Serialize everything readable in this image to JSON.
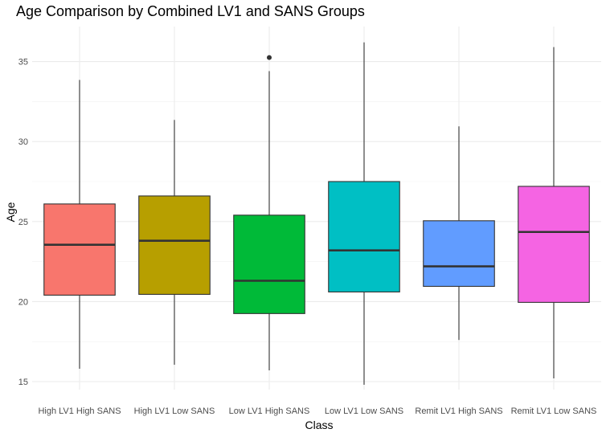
{
  "chart_data": {
    "type": "boxplot",
    "title": "Age Comparison by Combined LV1 and SANS Groups",
    "xlabel": "Class",
    "ylabel": "Age",
    "ylim": [
      14.8,
      36.6
    ],
    "yticks": [
      15,
      20,
      25,
      30,
      35
    ],
    "grid": true,
    "legend": "none",
    "categories": [
      "High LV1 High SANS",
      "High LV1 Low SANS",
      "Low LV1 High SANS",
      "Low LV1 Low SANS",
      "Remit LV1 High SANS",
      "Remit LV1 Low SANS"
    ],
    "boxes": [
      {
        "category": "High LV1 High SANS",
        "min": 15.8,
        "q1": 20.4,
        "median": 23.55,
        "q3": 26.1,
        "max": 33.85,
        "outliers": [],
        "color": "#F8766D"
      },
      {
        "category": "High LV1 Low SANS",
        "min": 16.05,
        "q1": 20.45,
        "median": 23.8,
        "q3": 26.6,
        "max": 31.35,
        "outliers": [],
        "color": "#B79F00"
      },
      {
        "category": "Low LV1 High SANS",
        "min": 15.7,
        "q1": 19.25,
        "median": 21.3,
        "q3": 25.4,
        "max": 34.4,
        "outliers": [
          35.25
        ],
        "color": "#00BA38"
      },
      {
        "category": "Low LV1 Low SANS",
        "min": 14.8,
        "q1": 20.6,
        "median": 23.2,
        "q3": 27.5,
        "max": 36.2,
        "outliers": [],
        "color": "#00BFC4"
      },
      {
        "category": "Remit LV1 High SANS",
        "min": 17.6,
        "q1": 20.95,
        "median": 22.2,
        "q3": 25.05,
        "max": 30.95,
        "outliers": [],
        "color": "#619CFF"
      },
      {
        "category": "Remit LV1 Low SANS",
        "min": 15.2,
        "q1": 19.95,
        "median": 24.35,
        "q3": 27.2,
        "max": 35.9,
        "outliers": [],
        "color": "#F564E3"
      }
    ]
  }
}
